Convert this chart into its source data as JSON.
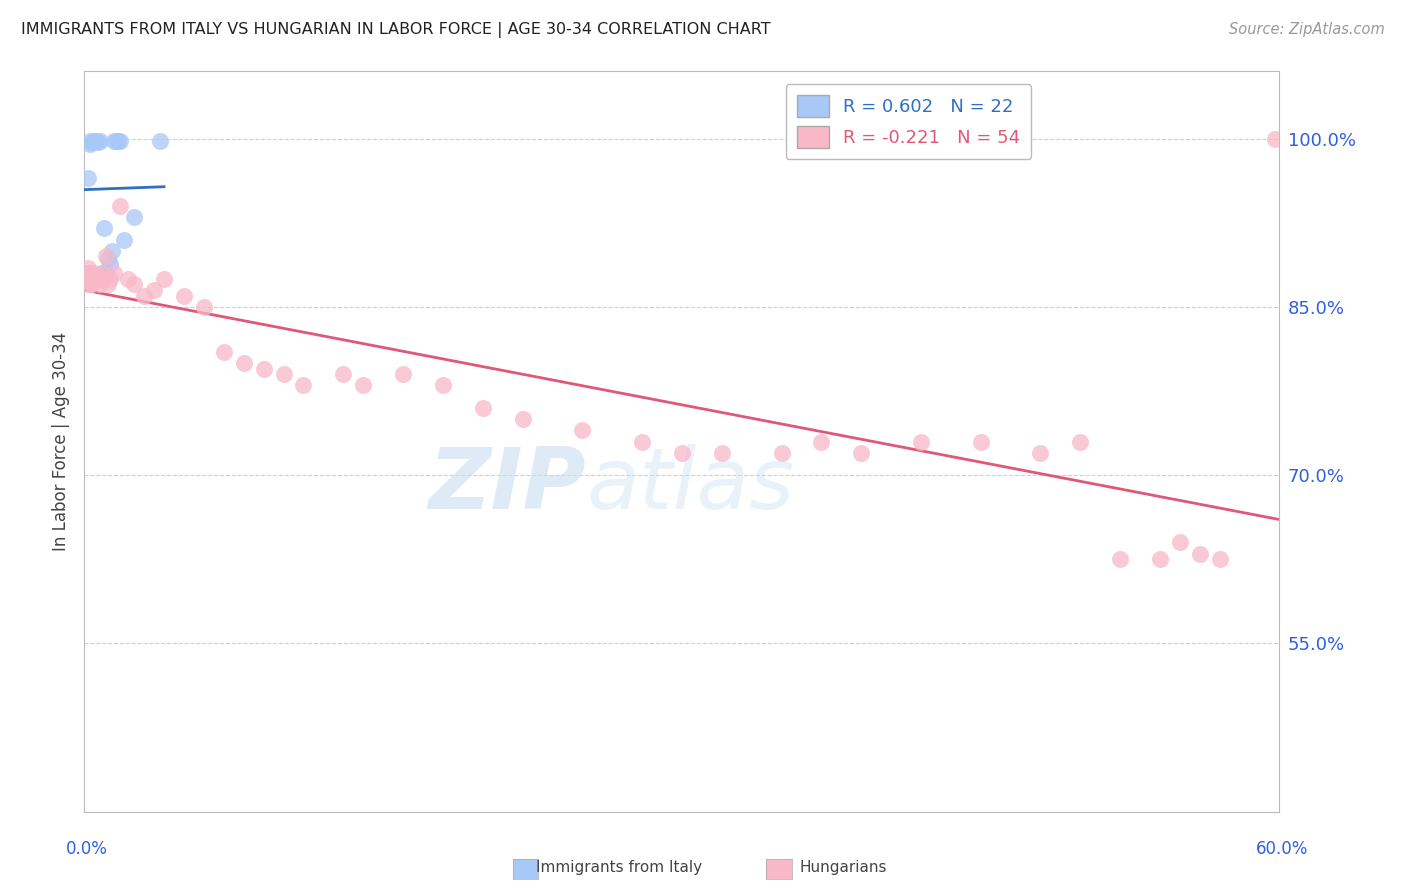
{
  "title": "IMMIGRANTS FROM ITALY VS HUNGARIAN IN LABOR FORCE | AGE 30-34 CORRELATION CHART",
  "source": "Source: ZipAtlas.com",
  "ylabel": "In Labor Force | Age 30-34",
  "xlim": [
    0.0,
    0.6
  ],
  "ylim": [
    0.4,
    1.06
  ],
  "ytick_vals": [
    0.55,
    0.7,
    0.85,
    1.0
  ],
  "ytick_labels": [
    "55.0%",
    "70.0%",
    "85.0%",
    "100.0%"
  ],
  "watermark_zip": "ZIP",
  "watermark_atlas": "atlas",
  "italy_x": [
    0.001,
    0.002,
    0.003,
    0.003,
    0.004,
    0.005,
    0.006,
    0.007,
    0.008,
    0.009,
    0.01,
    0.011,
    0.012,
    0.013,
    0.014,
    0.015,
    0.016,
    0.017,
    0.018,
    0.02,
    0.025,
    0.038
  ],
  "italy_y": [
    0.88,
    0.965,
    0.995,
    0.998,
    0.997,
    0.998,
    0.998,
    0.997,
    0.998,
    0.88,
    0.92,
    0.88,
    0.893,
    0.888,
    0.9,
    0.998,
    0.998,
    0.998,
    0.998,
    0.91,
    0.93,
    0.998
  ],
  "hungary_x": [
    0.001,
    0.002,
    0.002,
    0.003,
    0.003,
    0.004,
    0.004,
    0.005,
    0.005,
    0.006,
    0.007,
    0.008,
    0.009,
    0.01,
    0.011,
    0.012,
    0.013,
    0.015,
    0.018,
    0.022,
    0.025,
    0.03,
    0.035,
    0.04,
    0.05,
    0.06,
    0.07,
    0.08,
    0.09,
    0.1,
    0.11,
    0.13,
    0.14,
    0.16,
    0.18,
    0.2,
    0.22,
    0.25,
    0.28,
    0.3,
    0.32,
    0.35,
    0.37,
    0.39,
    0.42,
    0.45,
    0.48,
    0.5,
    0.52,
    0.54,
    0.55,
    0.56,
    0.57,
    0.598
  ],
  "hungary_y": [
    0.875,
    0.885,
    0.87,
    0.88,
    0.87,
    0.875,
    0.87,
    0.88,
    0.875,
    0.875,
    0.875,
    0.87,
    0.88,
    0.875,
    0.895,
    0.87,
    0.875,
    0.88,
    0.94,
    0.875,
    0.87,
    0.86,
    0.865,
    0.875,
    0.86,
    0.85,
    0.81,
    0.8,
    0.795,
    0.79,
    0.78,
    0.79,
    0.78,
    0.79,
    0.78,
    0.76,
    0.75,
    0.74,
    0.73,
    0.72,
    0.72,
    0.72,
    0.73,
    0.72,
    0.73,
    0.73,
    0.72,
    0.73,
    0.625,
    0.625,
    0.64,
    0.63,
    0.625,
    1.0
  ],
  "italy_color": "#a8c8f8",
  "hungary_color": "#f8b8c8",
  "italy_line_color": "#3070c0",
  "hungary_line_color": "#e05878",
  "axis_label_color": "#3060e0",
  "grid_color": "#d0d0d0",
  "background_color": "#ffffff",
  "title_color": "#222222",
  "source_color": "#999999"
}
